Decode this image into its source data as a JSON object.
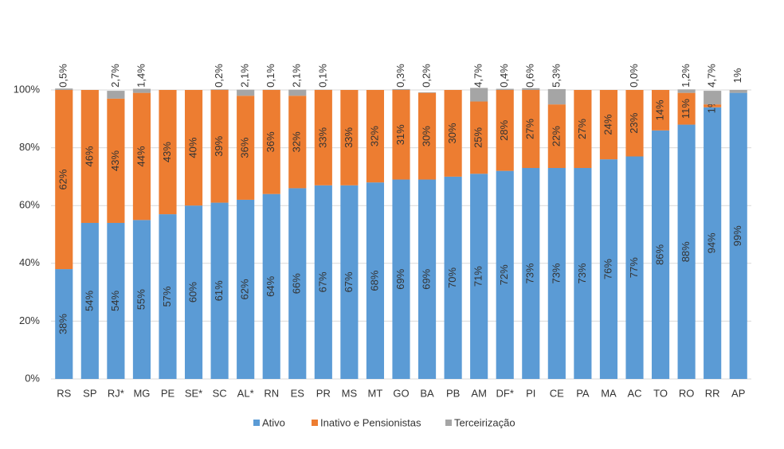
{
  "chart_data": {
    "type": "stacked_bar",
    "categories": [
      "RS",
      "SP",
      "RJ*",
      "MG",
      "PE",
      "SE*",
      "SC",
      "AL*",
      "RN",
      "ES",
      "PR",
      "MS",
      "MT",
      "GO",
      "BA",
      "PB",
      "AM",
      "DF*",
      "PI",
      "CE",
      "PA",
      "MA",
      "AC",
      "TO",
      "RO",
      "RR",
      "AP"
    ],
    "series": [
      {
        "name": "Ativo",
        "color": "#5b9bd5",
        "values": [
          38,
          54,
          54,
          55,
          57,
          60,
          61,
          62,
          64,
          66,
          67,
          67,
          68,
          69,
          69,
          70,
          71,
          72,
          73,
          73,
          73,
          76,
          77,
          86,
          88,
          94,
          99
        ],
        "value_labels": [
          "38%",
          "54%",
          "54%",
          "55%",
          "57%",
          "60%",
          "61%",
          "62%",
          "64%",
          "66%",
          "67%",
          "67%",
          "68%",
          "69%",
          "69%",
          "70%",
          "71%",
          "72%",
          "73%",
          "73%",
          "73%",
          "76%",
          "77%",
          "86%",
          "88%",
          "94%",
          "99%"
        ]
      },
      {
        "name": "Inativo e Pensionistas",
        "color": "#ed7d31",
        "values": [
          62,
          46,
          43,
          44,
          43,
          40,
          39,
          36,
          36,
          32,
          33,
          33,
          32,
          31,
          30,
          30,
          25,
          28,
          27,
          22,
          27,
          24,
          23,
          14,
          11,
          1,
          null
        ],
        "value_labels": [
          "62%",
          "46%",
          "43%",
          "44%",
          "43%",
          "40%",
          "39%",
          "36%",
          "36%",
          "32%",
          "33%",
          "33%",
          "32%",
          "31%",
          "30%",
          "30%",
          "25%",
          "28%",
          "27%",
          "22%",
          "27%",
          "24%",
          "23%",
          "14%",
          "11%",
          "1%",
          null
        ]
      },
      {
        "name": "Terceirização",
        "color": "#a5a5a5",
        "values": [
          0.5,
          null,
          2.7,
          1.4,
          null,
          null,
          0.2,
          2.1,
          0.1,
          2.1,
          0.1,
          null,
          null,
          0.3,
          0.2,
          null,
          4.7,
          0.4,
          0.6,
          5.3,
          null,
          null,
          0.0,
          null,
          1.2,
          4.7,
          1
        ],
        "value_labels": [
          "0,5%",
          null,
          "2,7%",
          "1,4%",
          null,
          null,
          "0,2%",
          "2,1%",
          "0,1%",
          "2,1%",
          "0,1%",
          null,
          null,
          "0,3%",
          "0,2%",
          null,
          "4,7%",
          "0,4%",
          "0,6%",
          "5,3%",
          null,
          null,
          "0,0%",
          null,
          "1,2%",
          "4,7%",
          "1%"
        ]
      }
    ],
    "ylim": [
      0,
      100
    ],
    "yticks": [
      {
        "value": 0,
        "label": "0%"
      },
      {
        "value": 20,
        "label": "20%"
      },
      {
        "value": 40,
        "label": "40%"
      },
      {
        "value": 60,
        "label": "60%"
      },
      {
        "value": 80,
        "label": "80%"
      },
      {
        "value": 100,
        "label": "100%"
      }
    ],
    "grid": true,
    "legend": "bottom"
  }
}
